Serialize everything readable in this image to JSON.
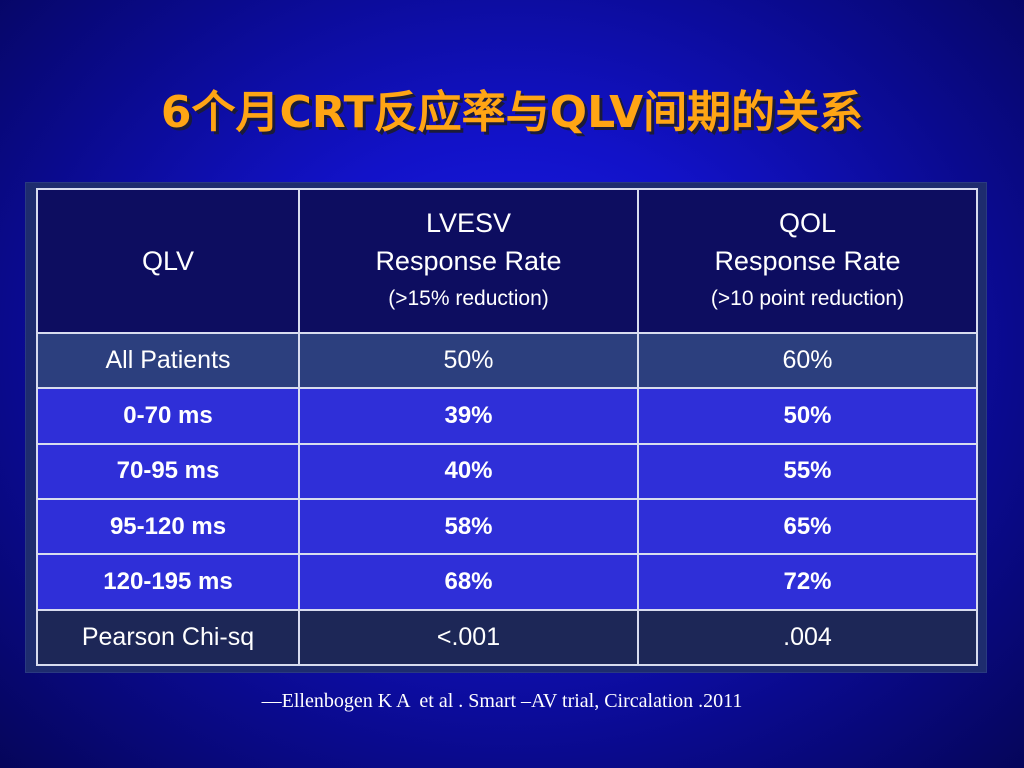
{
  "slide": {
    "title": "6个月CRT反应率与QLV间期的关系",
    "citation": "—Ellenbogen K A  et al . Smart –AV trial, Circalation .2011"
  },
  "table": {
    "header": {
      "col1": "QLV",
      "col2_line1": "LVESV",
      "col2_line2": "Response Rate",
      "col2_sub": "(>15% reduction)",
      "col3_line1": "QOL",
      "col3_line2": "Response Rate",
      "col3_sub": "(>10 point reduction)"
    },
    "rows": [
      {
        "qlv": "All Patients",
        "lvesv": "50%",
        "qol": "60%"
      },
      {
        "qlv": "0-70 ms",
        "lvesv": "39%",
        "qol": "50%"
      },
      {
        "qlv": "70-95 ms",
        "lvesv": "40%",
        "qol": "55%"
      },
      {
        "qlv": "95-120 ms",
        "lvesv": "58%",
        "qol": "65%"
      },
      {
        "qlv": "120-195 ms",
        "lvesv": "68%",
        "qol": "72%"
      },
      {
        "qlv": "Pearson Chi-sq",
        "lvesv": "<.001",
        "qol": ".004"
      }
    ]
  },
  "colors": {
    "background": "#1212c8",
    "title": "#ffa514",
    "header_fill": "#0d0d60",
    "all_patients_fill": "#2c3f7e",
    "bin_row_fill": "#2f2fd8",
    "pearson_fill": "#1d2757",
    "grid_line": "#d8dcef"
  }
}
